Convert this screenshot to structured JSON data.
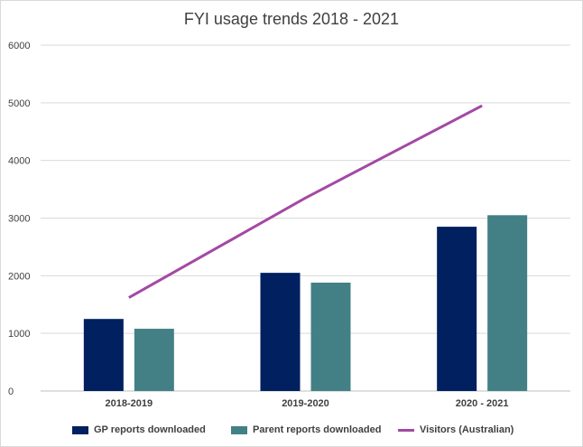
{
  "chart_data": {
    "type": "bar",
    "title": "FYI usage trends 2018 - 2021",
    "categories": [
      "2018-2019",
      "2019-2020",
      "2020 - 2021"
    ],
    "ylim": [
      0,
      6000
    ],
    "yticks": [
      0,
      1000,
      2000,
      3000,
      4000,
      5000,
      6000
    ],
    "grid": true,
    "legend_position": "bottom",
    "series": [
      {
        "name": "GP reports downloaded",
        "kind": "bar",
        "color": "#002060",
        "values": [
          1250,
          2050,
          2850
        ]
      },
      {
        "name": "Parent reports downloaded",
        "kind": "bar",
        "color": "#438086",
        "values": [
          1080,
          1880,
          3050
        ]
      },
      {
        "name": "Visitors (Australian)",
        "kind": "line",
        "color": "#a349a4",
        "values": [
          1620,
          3350,
          4950
        ]
      }
    ]
  }
}
